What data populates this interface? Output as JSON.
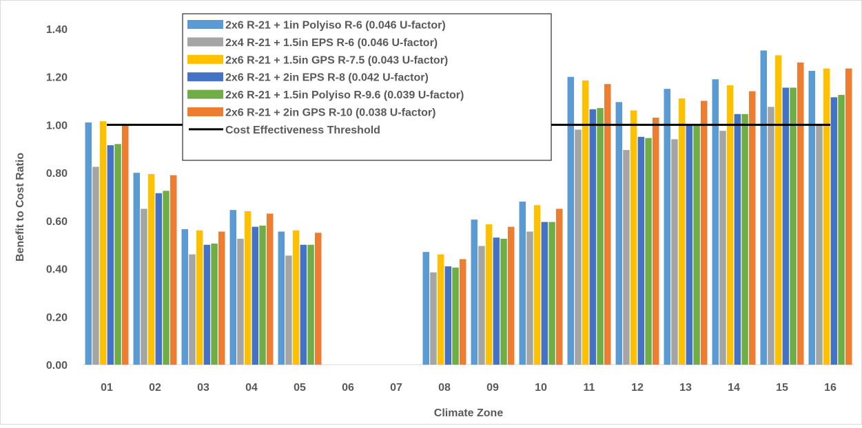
{
  "chart_data": {
    "type": "bar",
    "title": "",
    "xlabel": "Climate Zone",
    "ylabel": "Benefit to Cost Ratio",
    "ylim": [
      0,
      1.4
    ],
    "yticks": [
      0,
      0.2,
      0.4,
      0.6,
      0.8,
      1.0,
      1.2,
      1.4
    ],
    "ytick_labels": [
      "0.00",
      "0.20",
      "0.40",
      "0.60",
      "0.80",
      "1.00",
      "1.20",
      "1.40"
    ],
    "grid": false,
    "legend_position": "top-center",
    "categories": [
      "01",
      "02",
      "03",
      "04",
      "05",
      "06",
      "07",
      "08",
      "09",
      "10",
      "11",
      "12",
      "13",
      "14",
      "15",
      "16"
    ],
    "series": [
      {
        "name": "2x6 R-21 + 1in Polyiso R-6 (0.046 U-factor)",
        "color": "#5b9bd5",
        "values": [
          1.01,
          0.8,
          0.565,
          0.645,
          0.555,
          null,
          null,
          0.47,
          0.605,
          0.68,
          1.2,
          1.095,
          1.15,
          1.19,
          1.31,
          1.225
        ]
      },
      {
        "name": "2x4 R-21 + 1.5in EPS R-6 (0.046 U-factor)",
        "color": "#a5a5a5",
        "values": [
          0.825,
          0.65,
          0.46,
          0.525,
          0.455,
          null,
          null,
          0.385,
          0.495,
          0.555,
          0.98,
          0.895,
          0.94,
          0.975,
          1.075,
          1.0
        ]
      },
      {
        "name": "2x6 R-21 + 1.5in GPS R-7.5 (0.043 U-factor)",
        "color": "#ffc000",
        "values": [
          1.015,
          0.795,
          0.56,
          0.64,
          0.56,
          null,
          null,
          0.46,
          0.585,
          0.665,
          1.185,
          1.06,
          1.11,
          1.165,
          1.29,
          1.235
        ]
      },
      {
        "name": "2x6 R-21 + 2in EPS R-8 (0.042 U-factor)",
        "color": "#4472c4",
        "values": [
          0.915,
          0.715,
          0.5,
          0.575,
          0.5,
          null,
          null,
          0.41,
          0.53,
          0.595,
          1.065,
          0.95,
          1.0,
          1.045,
          1.155,
          1.115
        ]
      },
      {
        "name": "2x6 R-21 + 1.5in Polyiso R-9.6 (0.039 U-factor)",
        "color": "#70ad47",
        "values": [
          0.92,
          0.725,
          0.505,
          0.58,
          0.5,
          null,
          null,
          0.405,
          0.525,
          0.595,
          1.07,
          0.945,
          1.0,
          1.045,
          1.155,
          1.125
        ]
      },
      {
        "name": "2x6 R-21 + 2in GPS R-10 (0.038 U-factor)",
        "color": "#ed7d31",
        "values": [
          1.0,
          0.79,
          0.555,
          0.63,
          0.55,
          null,
          null,
          0.44,
          0.575,
          0.65,
          1.17,
          1.03,
          1.1,
          1.14,
          1.26,
          1.235
        ]
      }
    ],
    "threshold": {
      "name": "Cost Effectiveness Threshold",
      "value": 1.0,
      "color": "#000000"
    }
  }
}
